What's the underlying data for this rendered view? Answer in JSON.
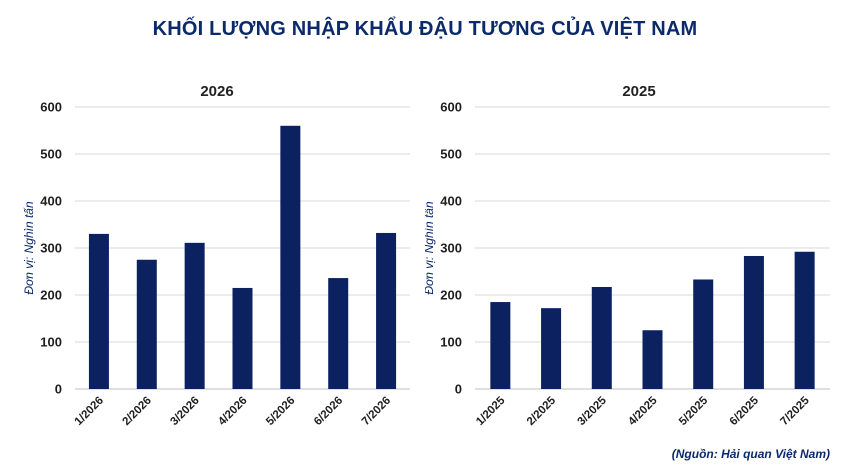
{
  "title": "KHỐI LƯỢNG NHẬP KHẨU ĐẬU TƯƠNG CỦA VIỆT NAM",
  "source": "(Nguồn: Hải quan Việt Nam)",
  "colors": {
    "bar": "#0b2160",
    "grid": "#d9d9d9",
    "title": "#0b2a6b"
  },
  "chart_data": [
    {
      "type": "bar",
      "title": "2026",
      "ylabel": "Đơn vị: Nghìn tấn",
      "categories": [
        "1/2026",
        "2/2026",
        "3/2026",
        "4/2026",
        "5/2026",
        "6/2026",
        "7/2026"
      ],
      "values": [
        330,
        275,
        311,
        215,
        560,
        236,
        332
      ],
      "ylim": [
        0,
        600
      ],
      "yticks": [
        "0",
        "100",
        "200",
        "300",
        "400",
        "500",
        "600"
      ],
      "grid": true
    },
    {
      "type": "bar",
      "title": "2025",
      "ylabel": "Đơn vị: Nghìn tấn",
      "categories": [
        "1/2025",
        "2/2025",
        "3/2025",
        "4/2025",
        "5/2025",
        "6/2025",
        "7/2025"
      ],
      "values": [
        185,
        172,
        217,
        125,
        233,
        283,
        292
      ],
      "ylim": [
        0,
        600
      ],
      "yticks": [
        "0",
        "100",
        "200",
        "300",
        "400",
        "500",
        "600"
      ],
      "grid": true
    }
  ]
}
